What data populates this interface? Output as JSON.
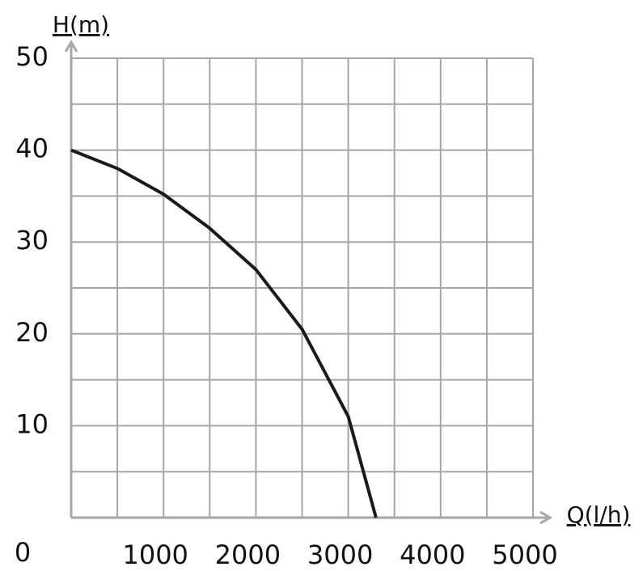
{
  "chart_data": {
    "type": "line",
    "x_label": "Q(l/h)",
    "y_label": "H(m)",
    "xlim": [
      0,
      5000
    ],
    "ylim": [
      0,
      50
    ],
    "xticks": [
      1000,
      2000,
      3000,
      4000,
      5000
    ],
    "yticks": [
      0,
      10,
      20,
      30,
      40,
      50
    ],
    "xgrid": [
      0,
      500,
      1000,
      1500,
      2000,
      2500,
      3000,
      3500,
      4000,
      4500,
      5000
    ],
    "ygrid": [
      0,
      5,
      10,
      15,
      20,
      25,
      30,
      35,
      40,
      45,
      50
    ],
    "grid_color": "#a6a6a6",
    "x": [
      0,
      500,
      1000,
      1500,
      2000,
      2500,
      3000,
      3300
    ],
    "series": [
      {
        "color": "#1a1a1a",
        "values": [
          40,
          38,
          35.2,
          31.5,
          27,
          20.5,
          11,
          0
        ]
      }
    ]
  }
}
